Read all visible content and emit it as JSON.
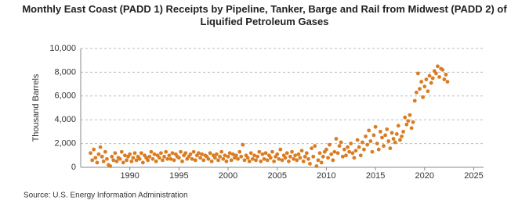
{
  "chart_data": {
    "type": "scatter",
    "title": "Monthly East Coast (PADD 1) Receipts by Pipeline, Tanker, Barge and Rail from Midwest (PADD 2) of Liquified Petroleum Gases",
    "y_label": "Thousand Barrels",
    "source": "Source: U.S. Energy Information Administration",
    "color": "#d97c22",
    "grid": true,
    "xlim": [
      1985,
      2026
    ],
    "xticks": [
      1990,
      1995,
      2000,
      2005,
      2010,
      2015,
      2020,
      2025
    ],
    "ylim": [
      0,
      10000
    ],
    "yticks": [
      0,
      {
        "value": 2000,
        "label": "2,000"
      },
      {
        "value": 4000,
        "label": "4,000"
      },
      {
        "value": 6000,
        "label": "6,000"
      },
      {
        "value": 8000,
        "label": "8,000"
      },
      {
        "value": 10000,
        "label": "10,000"
      }
    ],
    "x": [
      1986,
      1986.17,
      1986.33,
      1986.5,
      1986.67,
      1986.83,
      1987,
      1987.17,
      1987.33,
      1987.5,
      1987.67,
      1987.83,
      1988,
      1988.17,
      1988.33,
      1988.5,
      1988.67,
      1988.83,
      1989,
      1989.17,
      1989.33,
      1989.5,
      1989.67,
      1989.83,
      1990,
      1990.17,
      1990.33,
      1990.5,
      1990.67,
      1990.83,
      1991,
      1991.17,
      1991.33,
      1991.5,
      1991.67,
      1991.83,
      1992,
      1992.17,
      1992.33,
      1992.5,
      1992.67,
      1992.83,
      1993,
      1993.17,
      1993.33,
      1993.5,
      1993.67,
      1993.83,
      1994,
      1994.17,
      1994.33,
      1994.5,
      1994.67,
      1994.83,
      1995,
      1995.17,
      1995.33,
      1995.5,
      1995.67,
      1995.83,
      1996,
      1996.17,
      1996.33,
      1996.5,
      1996.67,
      1996.83,
      1997,
      1997.17,
      1997.33,
      1997.5,
      1997.67,
      1997.83,
      1998,
      1998.17,
      1998.33,
      1998.5,
      1998.67,
      1998.83,
      1999,
      1999.17,
      1999.33,
      1999.5,
      1999.67,
      1999.83,
      2000,
      2000.17,
      2000.33,
      2000.5,
      2000.67,
      2000.83,
      2001,
      2001.17,
      2001.33,
      2001.5,
      2001.67,
      2001.83,
      2002,
      2002.17,
      2002.33,
      2002.5,
      2002.67,
      2002.83,
      2003,
      2003.17,
      2003.33,
      2003.5,
      2003.67,
      2003.83,
      2004,
      2004.17,
      2004.33,
      2004.5,
      2004.67,
      2004.83,
      2005,
      2005.17,
      2005.33,
      2005.5,
      2005.67,
      2005.83,
      2006,
      2006.17,
      2006.33,
      2006.5,
      2006.67,
      2006.83,
      2007,
      2007.17,
      2007.33,
      2007.5,
      2007.67,
      2007.83,
      2008,
      2008.17,
      2008.33,
      2008.5,
      2008.67,
      2008.83,
      2009,
      2009.17,
      2009.33,
      2009.5,
      2009.67,
      2009.83,
      2010,
      2010.17,
      2010.33,
      2010.5,
      2010.67,
      2010.83,
      2011,
      2011.17,
      2011.33,
      2011.5,
      2011.67,
      2011.83,
      2012,
      2012.17,
      2012.33,
      2012.5,
      2012.67,
      2012.83,
      2013,
      2013.17,
      2013.33,
      2013.5,
      2013.67,
      2013.83,
      2014,
      2014.17,
      2014.33,
      2014.5,
      2014.67,
      2014.83,
      2015,
      2015.17,
      2015.33,
      2015.5,
      2015.67,
      2015.83,
      2016,
      2016.17,
      2016.33,
      2016.5,
      2016.67,
      2016.83,
      2017,
      2017.17,
      2017.33,
      2017.5,
      2017.67,
      2017.83,
      2018,
      2018.17,
      2018.33,
      2018.5,
      2018.67,
      2018.83,
      2019,
      2019.17,
      2019.33,
      2019.5,
      2019.67,
      2019.83,
      2020,
      2020.17,
      2020.33,
      2020.5,
      2020.67,
      2020.83,
      2021,
      2021.17,
      2021.33,
      2021.5,
      2021.67,
      2021.83,
      2022,
      2022.17,
      2022.33
    ],
    "values": [
      1200,
      600,
      1500,
      800,
      400,
      1100,
      1700,
      900,
      500,
      1300,
      700,
      200,
      100,
      900,
      600,
      1200,
      500,
      800,
      700,
      1300,
      400,
      1000,
      600,
      900,
      1100,
      500,
      800,
      1200,
      600,
      900,
      700,
      1200,
      400,
      1000,
      800,
      600,
      900,
      1300,
      700,
      1100,
      500,
      1000,
      800,
      1200,
      600,
      900,
      1300,
      700,
      1000,
      700,
      1200,
      600,
      1100,
      900,
      800,
      1300,
      500,
      1000,
      1200,
      700,
      900,
      1100,
      700,
      1300,
      600,
      1000,
      1200,
      800,
      1100,
      600,
      1000,
      900,
      700,
      1200,
      500,
      1000,
      800,
      1100,
      600,
      900,
      1300,
      700,
      1000,
      500,
      900,
      1200,
      600,
      1100,
      800,
      1000,
      700,
      1300,
      900,
      1900,
      600,
      1000,
      800,
      500,
      1200,
      700,
      1000,
      600,
      900,
      1300,
      500,
      1100,
      700,
      1200,
      600,
      1000,
      800,
      1300,
      500,
      900,
      1100,
      700,
      1500,
      600,
      1000,
      800,
      1200,
      500,
      900,
      1300,
      700,
      1000,
      600,
      1100,
      800,
      1400,
      500,
      900,
      1200,
      700,
      300,
      1600,
      900,
      1800,
      100,
      600,
      1200,
      400,
      900,
      1300,
      1500,
      800,
      1900,
      1100,
      600,
      1300,
      2400,
      1200,
      1800,
      2100,
      900,
      1500,
      1000,
      1700,
      1300,
      2000,
      1200,
      800,
      1400,
      2300,
      1700,
      1000,
      2100,
      1500,
      2600,
      1900,
      3100,
      2200,
      1300,
      2700,
      3400,
      2000,
      1500,
      3000,
      2500,
      1800,
      2700,
      3200,
      2200,
      1600,
      2900,
      2400,
      2100,
      2800,
      3500,
      2300,
      2600,
      3000,
      4200,
      3600,
      3900,
      4400,
      3300,
      3800,
      5600,
      6300,
      7900,
      6600,
      7200,
      5900,
      6800,
      7400,
      6400,
      7700,
      7100,
      7500,
      8100,
      7900,
      8500,
      7600,
      8300,
      8200,
      7400,
      7800,
      7200
    ]
  }
}
